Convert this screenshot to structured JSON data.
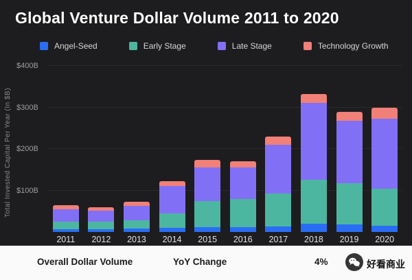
{
  "title": "Global Venture Dollar Volume 2011 to 2020",
  "legend": [
    {
      "label": "Angel-Seed",
      "color": "#2a6df5"
    },
    {
      "label": "Early Stage",
      "color": "#4db6a0"
    },
    {
      "label": "Late Stage",
      "color": "#8170f5"
    },
    {
      "label": "Technology Growth",
      "color": "#f08078"
    }
  ],
  "chart_data": {
    "type": "bar",
    "stacked": true,
    "title": "Global Venture Dollar Volume 2011 to 2020",
    "ylabel": "Total Invested Capital Per Year (In $B)",
    "xlabel": "",
    "ylim": [
      0,
      400
    ],
    "grid": false,
    "legend_position": "top",
    "yticks": [
      {
        "value": 100,
        "label": "$100B"
      },
      {
        "value": 200,
        "label": "$200B"
      },
      {
        "value": 300,
        "label": "$300B"
      },
      {
        "value": 400,
        "label": "$400B"
      }
    ],
    "categories": [
      "2011",
      "2012",
      "2013",
      "2014",
      "2015",
      "2016",
      "2017",
      "2018",
      "2019",
      "2020"
    ],
    "series": [
      {
        "name": "Angel-Seed",
        "color": "#2a6df5",
        "values": [
          7,
          7,
          8,
          10,
          12,
          12,
          14,
          20,
          18,
          15
        ]
      },
      {
        "name": "Early Stage",
        "color": "#4db6a0",
        "values": [
          18,
          18,
          20,
          35,
          62,
          68,
          78,
          105,
          100,
          90
        ]
      },
      {
        "name": "Late Stage",
        "color": "#8170f5",
        "values": [
          30,
          27,
          35,
          65,
          82,
          75,
          118,
          185,
          150,
          168
        ]
      },
      {
        "name": "Technology Growth",
        "color": "#f08078",
        "values": [
          10,
          8,
          9,
          12,
          18,
          15,
          20,
          22,
          22,
          27
        ]
      }
    ],
    "totals": [
      65,
      60,
      72,
      122,
      174,
      170,
      230,
      332,
      290,
      300
    ]
  },
  "footer": {
    "overall_label": "Overall Dollar Volume",
    "yoy_label": "YoY Change",
    "yoy_value": "4%",
    "brand": "好看商业"
  }
}
